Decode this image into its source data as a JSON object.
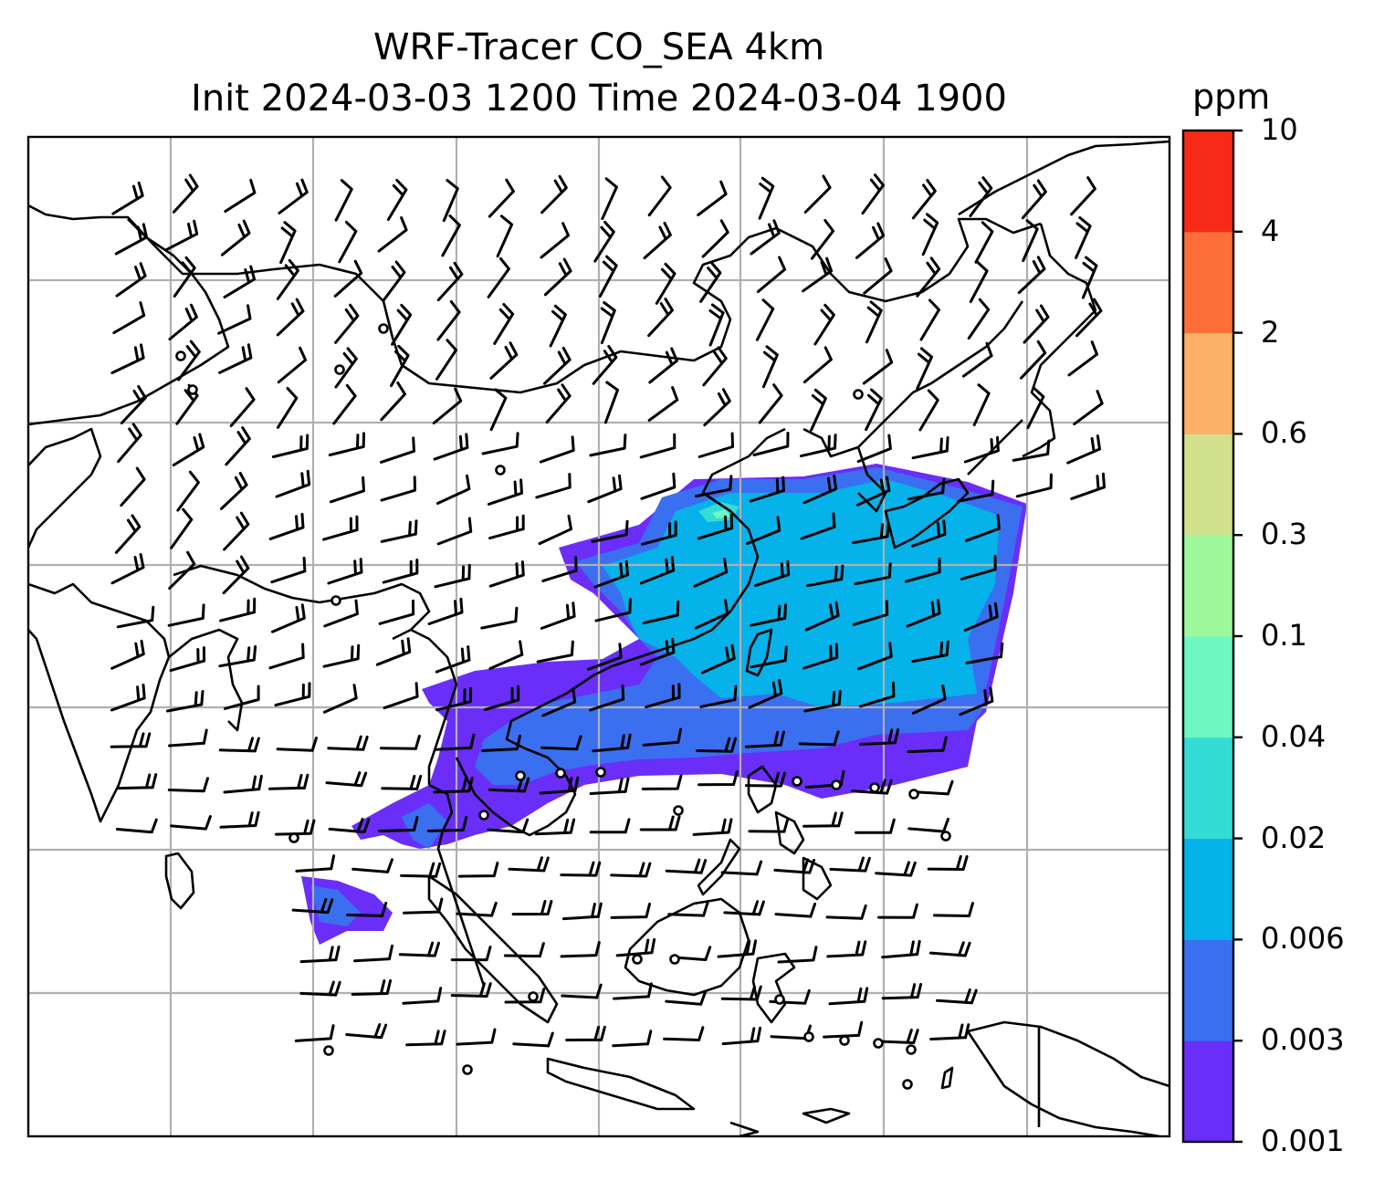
{
  "title_line1": "WRF-Tracer CO_SEA 4km",
  "title_line2": "Init 2024-03-03 1200 Time 2024-03-04 1900",
  "colorbar": {
    "unit": "ppm",
    "levels": [
      "0.001",
      "0.003",
      "0.006",
      "0.02",
      "0.04",
      "0.1",
      "0.3",
      "0.6",
      "2",
      "4",
      "10"
    ],
    "colors": [
      "#6a2ef8",
      "#3a6ff0",
      "#06b2ea",
      "#34dcd6",
      "#6ef7c2",
      "#9cf89a",
      "#d1e08a",
      "#fdb068",
      "#fc6e3a",
      "#f72a18"
    ]
  },
  "map": {
    "grid": "on",
    "features": [
      "coastlines",
      "country-borders",
      "wind-barbs",
      "tracer-concentration-shading"
    ]
  }
}
